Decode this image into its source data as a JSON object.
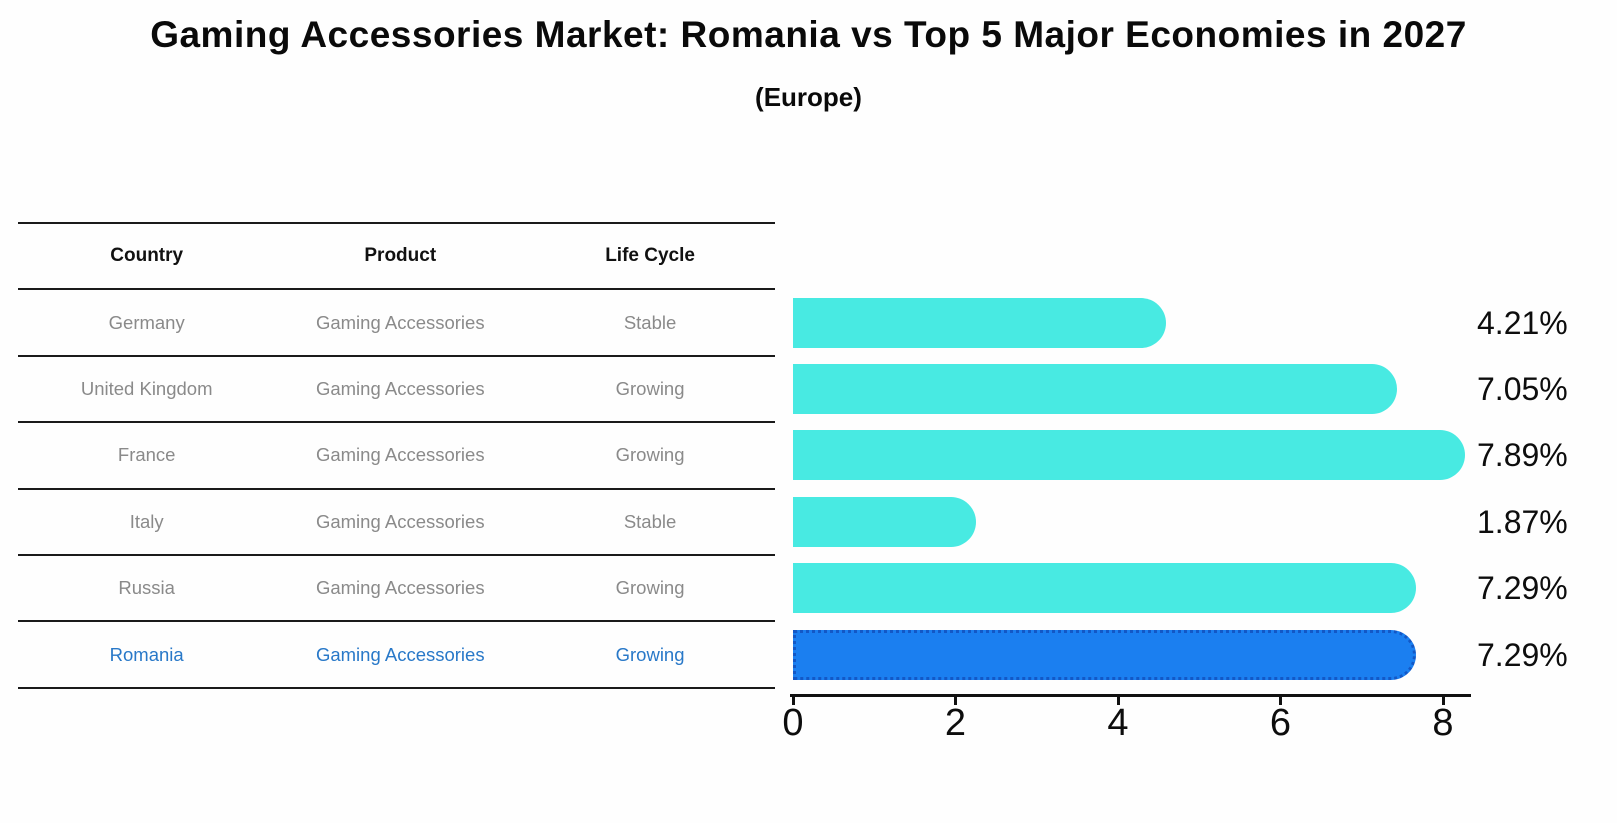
{
  "title": "Gaming Accessories Market: Romania vs Top 5 Major Economies in 2027",
  "subtitle": "(Europe)",
  "table": {
    "columns": [
      "Country",
      "Product",
      "Life Cycle"
    ],
    "rows": [
      {
        "country": "Germany",
        "product": "Gaming Accessories",
        "life_cycle": "Stable",
        "highlight": false
      },
      {
        "country": "United Kingdom",
        "product": "Gaming Accessories",
        "life_cycle": "Growing",
        "highlight": false
      },
      {
        "country": "France",
        "product": "Gaming Accessories",
        "life_cycle": "Growing",
        "highlight": false
      },
      {
        "country": "Italy",
        "product": "Gaming Accessories",
        "life_cycle": "Stable",
        "highlight": false
      },
      {
        "country": "Russia",
        "product": "Gaming Accessories",
        "life_cycle": "Growing",
        "highlight": false
      },
      {
        "country": "Romania",
        "product": "Gaming Accessories",
        "life_cycle": "Growing",
        "highlight": true
      }
    ]
  },
  "chart_data": {
    "type": "bar",
    "orientation": "horizontal",
    "title": "Gaming Accessories Market: Romania vs Top 5 Major Economies in 2027",
    "subtitle": "(Europe)",
    "categories": [
      "Germany",
      "United Kingdom",
      "France",
      "Italy",
      "Russia",
      "Romania"
    ],
    "values": [
      4.21,
      7.05,
      7.89,
      1.87,
      7.29,
      7.29
    ],
    "value_labels": [
      "4.21%",
      "7.05%",
      "7.89%",
      "1.87%",
      "7.29%",
      "7.29%"
    ],
    "xlabel": "",
    "ylabel": "",
    "xlim": [
      0,
      8.37
    ],
    "x_ticks": [
      "0",
      "2",
      "4",
      "6",
      "8"
    ],
    "grid": false,
    "legend": false,
    "highlight_index": 5,
    "colors": {
      "bar": "#48EAE2",
      "highlight_bar": "#1B7FF0",
      "highlight_border": "#1358C6",
      "highlight_text": "#2878C8",
      "row_text": "#8a8a8a",
      "text": "#0d0d0d"
    }
  }
}
